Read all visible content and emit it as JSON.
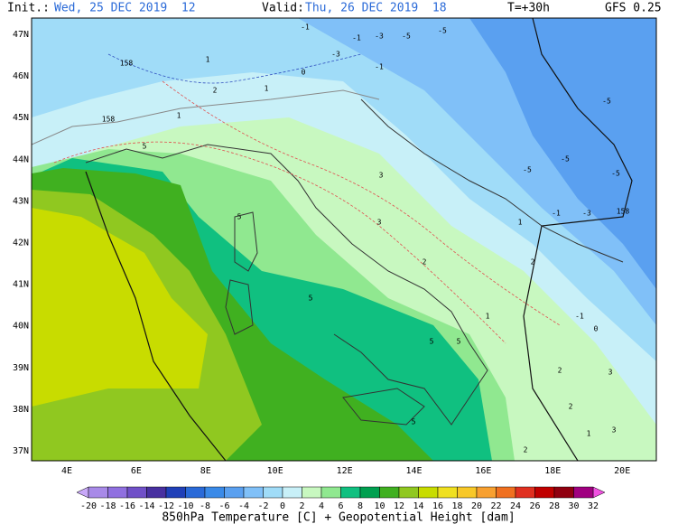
{
  "header": {
    "init_label": "Init.:",
    "init": "Wed, 25 DEC 2019  12",
    "valid_label": "Valid:",
    "valid": "Thu, 26 DEC 2019  18",
    "step": "T=+30h",
    "model": "GFS 0.25"
  },
  "lat_labels": [
    "47N",
    "46N",
    "45N",
    "44N",
    "43N",
    "42N",
    "41N",
    "40N",
    "39N",
    "38N",
    "37N"
  ],
  "lon_labels": [
    "4E",
    "6E",
    "8E",
    "10E",
    "12E",
    "14E",
    "16E",
    "18E",
    "20E"
  ],
  "contour_labels": [
    "-1",
    "-3",
    "-5",
    "-1",
    "-3",
    "-5",
    "-1",
    "158",
    "158",
    "1",
    "2",
    "1",
    "0",
    "1",
    "-5",
    "-5",
    "-5",
    "-5",
    "-3",
    "-1",
    "158",
    "1",
    "2",
    "3",
    "5",
    "5",
    "3",
    "2",
    "2",
    "5",
    "5",
    "5",
    "5",
    "-1",
    "0",
    "2",
    "1",
    "2",
    "3",
    "3",
    "1"
  ],
  "colorbar": {
    "labels": [
      -20,
      -18,
      -16,
      -14,
      -12,
      -10,
      -8,
      -6,
      -4,
      -2,
      0,
      2,
      4,
      6,
      8,
      10,
      12,
      14,
      16,
      18,
      20,
      22,
      24,
      26,
      28,
      30,
      32
    ],
    "colors": [
      "#a88ae8",
      "#9070e0",
      "#7050c8",
      "#4830a0",
      "#2040b8",
      "#2a6ad8",
      "#3a8ae8",
      "#5aa0f0",
      "#80c0f8",
      "#a0dcf8",
      "#c8f0f8",
      "#c8f8c0",
      "#90e890",
      "#10c080",
      "#00a050",
      "#40b020",
      "#90c820",
      "#c8dc00",
      "#f0e020",
      "#f8c828",
      "#f8a030",
      "#f07020",
      "#e03020",
      "#c00000",
      "#900010",
      "#a00080"
    ],
    "low_color": "#c8a8f8",
    "high_color": "#f050e0"
  },
  "footer": "850hPa Temperature [C] + Geopotential Height [dam]"
}
